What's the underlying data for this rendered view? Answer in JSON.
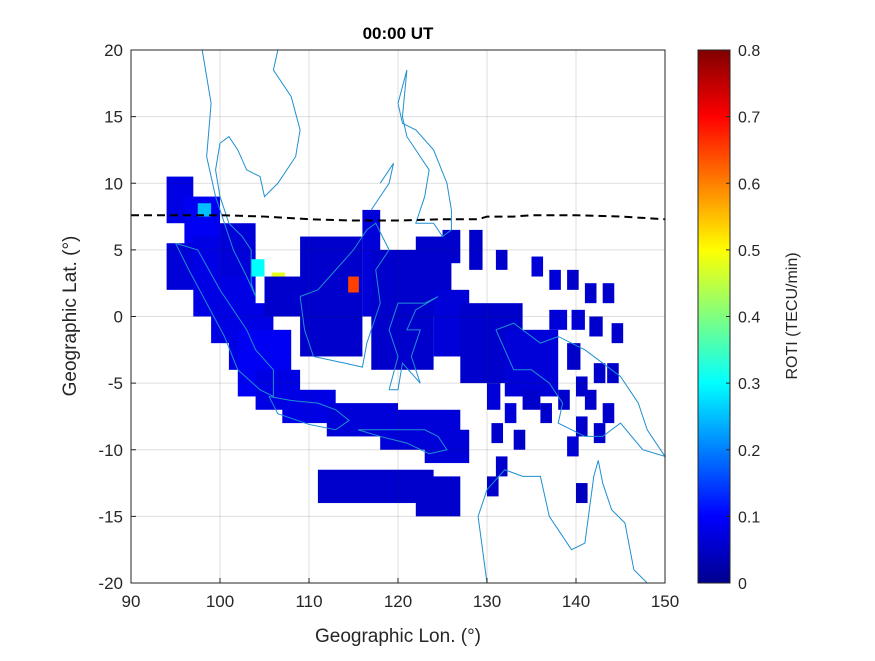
{
  "chart_data": {
    "type": "heatmap",
    "title": "00:00 UT",
    "xlabel": "Geographic Lon. (°)",
    "ylabel": "Geographic Lat. (°)",
    "xlim": [
      90,
      150
    ],
    "ylim": [
      -20,
      20
    ],
    "xticks": [
      "90",
      "100",
      "110",
      "120",
      "130",
      "140",
      "150"
    ],
    "yticks": [
      "20",
      "15",
      "10",
      "5",
      "0",
      "-5",
      "-10",
      "-15",
      "-20"
    ],
    "grid": true,
    "colormap": "jet",
    "colorbar": {
      "label": "ROTI (TECU/min)",
      "range": [
        0,
        0.8
      ],
      "ticks": [
        "0",
        "0.1",
        "0.2",
        "0.3",
        "0.4",
        "0.5",
        "0.6",
        "0.7",
        "0.8"
      ]
    },
    "magnetic_equator": {
      "style": "dashed",
      "color": "#000000",
      "lon": [
        90,
        100,
        105,
        110,
        115,
        120,
        125,
        129,
        130,
        133,
        135,
        140,
        145,
        150
      ],
      "lat": [
        7.6,
        7.6,
        7.5,
        7.3,
        7.2,
        7.2,
        7.3,
        7.3,
        7.5,
        7.5,
        7.6,
        7.6,
        7.5,
        7.3
      ]
    },
    "coastline_color": "#1f8fd0",
    "roti_cells": [
      {
        "lon": [
          94,
          97
        ],
        "lat": [
          7,
          10.5
        ],
        "roti": 0.08
      },
      {
        "lon": [
          96,
          100
        ],
        "lat": [
          5,
          9
        ],
        "roti": 0.09
      },
      {
        "lon": [
          97.5,
          99
        ],
        "lat": [
          7.5,
          8.5
        ],
        "roti": 0.25
      },
      {
        "lon": [
          94,
          98
        ],
        "lat": [
          2,
          5.5
        ],
        "roti": 0.07
      },
      {
        "lon": [
          97,
          102
        ],
        "lat": [
          0,
          6
        ],
        "roti": 0.08
      },
      {
        "lon": [
          99,
          104
        ],
        "lat": [
          -2,
          4
        ],
        "roti": 0.08
      },
      {
        "lon": [
          101,
          106
        ],
        "lat": [
          -4,
          1
        ],
        "roti": 0.08
      },
      {
        "lon": [
          102,
          108
        ],
        "lat": [
          -6,
          -1
        ],
        "roti": 0.09
      },
      {
        "lon": [
          104,
          109
        ],
        "lat": [
          -7,
          -4
        ],
        "roti": 0.08
      },
      {
        "lon": [
          100,
          104
        ],
        "lat": [
          3,
          7
        ],
        "roti": 0.07
      },
      {
        "lon": [
          103.5,
          105
        ],
        "lat": [
          3,
          4.3
        ],
        "roti": 0.3
      },
      {
        "lon": [
          105.8,
          107.3
        ],
        "lat": [
          2,
          3.3
        ],
        "roti": 0.48
      },
      {
        "lon": [
          105,
          110
        ],
        "lat": [
          0,
          3
        ],
        "roti": 0.06
      },
      {
        "lon": [
          107,
          113
        ],
        "lat": [
          -8,
          -5.5
        ],
        "roti": 0.08
      },
      {
        "lon": [
          112,
          120
        ],
        "lat": [
          -9,
          -6.5
        ],
        "roti": 0.07
      },
      {
        "lon": [
          118,
          127
        ],
        "lat": [
          -10,
          -7
        ],
        "roti": 0.07
      },
      {
        "lon": [
          123,
          128
        ],
        "lat": [
          -11,
          -8.5
        ],
        "roti": 0.07
      },
      {
        "lon": [
          111,
          124
        ],
        "lat": [
          -14,
          -11.5
        ],
        "roti": 0.06
      },
      {
        "lon": [
          122,
          127
        ],
        "lat": [
          -15,
          -12
        ],
        "roti": 0.06
      },
      {
        "lon": [
          109,
          116
        ],
        "lat": [
          -3,
          6
        ],
        "roti": 0.06
      },
      {
        "lon": [
          114.4,
          115.6
        ],
        "lat": [
          1.8,
          3
        ],
        "roti": 0.65
      },
      {
        "lon": [
          116,
          118
        ],
        "lat": [
          0,
          8
        ],
        "roti": 0.07
      },
      {
        "lon": [
          117,
          124
        ],
        "lat": [
          -4,
          5
        ],
        "roti": 0.06
      },
      {
        "lon": [
          122,
          126
        ],
        "lat": [
          0,
          6
        ],
        "roti": 0.06
      },
      {
        "lon": [
          124,
          128
        ],
        "lat": [
          -3,
          2
        ],
        "roti": 0.07
      },
      {
        "lon": [
          125,
          127
        ],
        "lat": [
          4,
          6.5
        ],
        "roti": 0.06
      },
      {
        "lon": [
          127,
          134
        ],
        "lat": [
          -5,
          1
        ],
        "roti": 0.06
      },
      {
        "lon": [
          132,
          138
        ],
        "lat": [
          -6,
          -1
        ],
        "roti": 0.07
      },
      {
        "lon": [
          128,
          129.5
        ],
        "lat": [
          3.5,
          6.5
        ],
        "roti": 0.06
      },
      {
        "lon": [
          131,
          132.3
        ],
        "lat": [
          3.5,
          5
        ],
        "roti": 0.06
      },
      {
        "lon": [
          135,
          136.3
        ],
        "lat": [
          3,
          4.5
        ],
        "roti": 0.07
      },
      {
        "lon": [
          137,
          138.3
        ],
        "lat": [
          2,
          3.5
        ],
        "roti": 0.07
      },
      {
        "lon": [
          139,
          140.3
        ],
        "lat": [
          2,
          3.5
        ],
        "roti": 0.06
      },
      {
        "lon": [
          141,
          142.3
        ],
        "lat": [
          1,
          2.5
        ],
        "roti": 0.06
      },
      {
        "lon": [
          143,
          144.3
        ],
        "lat": [
          1,
          2.5
        ],
        "roti": 0.06
      },
      {
        "lon": [
          137,
          139
        ],
        "lat": [
          -1,
          0.5
        ],
        "roti": 0.07
      },
      {
        "lon": [
          139.5,
          141
        ],
        "lat": [
          -1,
          0.5
        ],
        "roti": 0.07
      },
      {
        "lon": [
          141.5,
          143
        ],
        "lat": [
          -1.5,
          0
        ],
        "roti": 0.06
      },
      {
        "lon": [
          144,
          145.3
        ],
        "lat": [
          -2,
          -0.5
        ],
        "roti": 0.06
      },
      {
        "lon": [
          139,
          140.5
        ],
        "lat": [
          -4,
          -2
        ],
        "roti": 0.06
      },
      {
        "lon": [
          142,
          143.3
        ],
        "lat": [
          -5,
          -3.5
        ],
        "roti": 0.06
      },
      {
        "lon": [
          140,
          141.3
        ],
        "lat": [
          -6,
          -4.5
        ],
        "roti": 0.06
      },
      {
        "lon": [
          143.5,
          144.8
        ],
        "lat": [
          -5,
          -3.5
        ],
        "roti": 0.06
      },
      {
        "lon": [
          130,
          131.5
        ],
        "lat": [
          -7,
          -5
        ],
        "roti": 0.07
      },
      {
        "lon": [
          132,
          133.3
        ],
        "lat": [
          -8,
          -6.5
        ],
        "roti": 0.07
      },
      {
        "lon": [
          134,
          136
        ],
        "lat": [
          -7,
          -5.5
        ],
        "roti": 0.06
      },
      {
        "lon": [
          136,
          137.3
        ],
        "lat": [
          -8,
          -6.5
        ],
        "roti": 0.06
      },
      {
        "lon": [
          138,
          139.3
        ],
        "lat": [
          -7,
          -5.5
        ],
        "roti": 0.06
      },
      {
        "lon": [
          141,
          142.3
        ],
        "lat": [
          -7,
          -5.5
        ],
        "roti": 0.06
      },
      {
        "lon": [
          143,
          144.3
        ],
        "lat": [
          -8,
          -6.5
        ],
        "roti": 0.06
      },
      {
        "lon": [
          140,
          141.3
        ],
        "lat": [
          -9,
          -7.5
        ],
        "roti": 0.06
      },
      {
        "lon": [
          139,
          140.3
        ],
        "lat": [
          -10.5,
          -9
        ],
        "roti": 0.07
      },
      {
        "lon": [
          142,
          143.3
        ],
        "lat": [
          -9.5,
          -8
        ],
        "roti": 0.06
      },
      {
        "lon": [
          130.5,
          131.8
        ],
        "lat": [
          -9.5,
          -8
        ],
        "roti": 0.06
      },
      {
        "lon": [
          133,
          134.3
        ],
        "lat": [
          -10,
          -8.5
        ],
        "roti": 0.06
      },
      {
        "lon": [
          131,
          132.3
        ],
        "lat": [
          -12,
          -10.5
        ],
        "roti": 0.06
      },
      {
        "lon": [
          130,
          131.3
        ],
        "lat": [
          -13.5,
          -12
        ],
        "roti": 0.06
      },
      {
        "lon": [
          140,
          141.3
        ],
        "lat": [
          -14,
          -12.5
        ],
        "roti": 0.05
      }
    ]
  }
}
